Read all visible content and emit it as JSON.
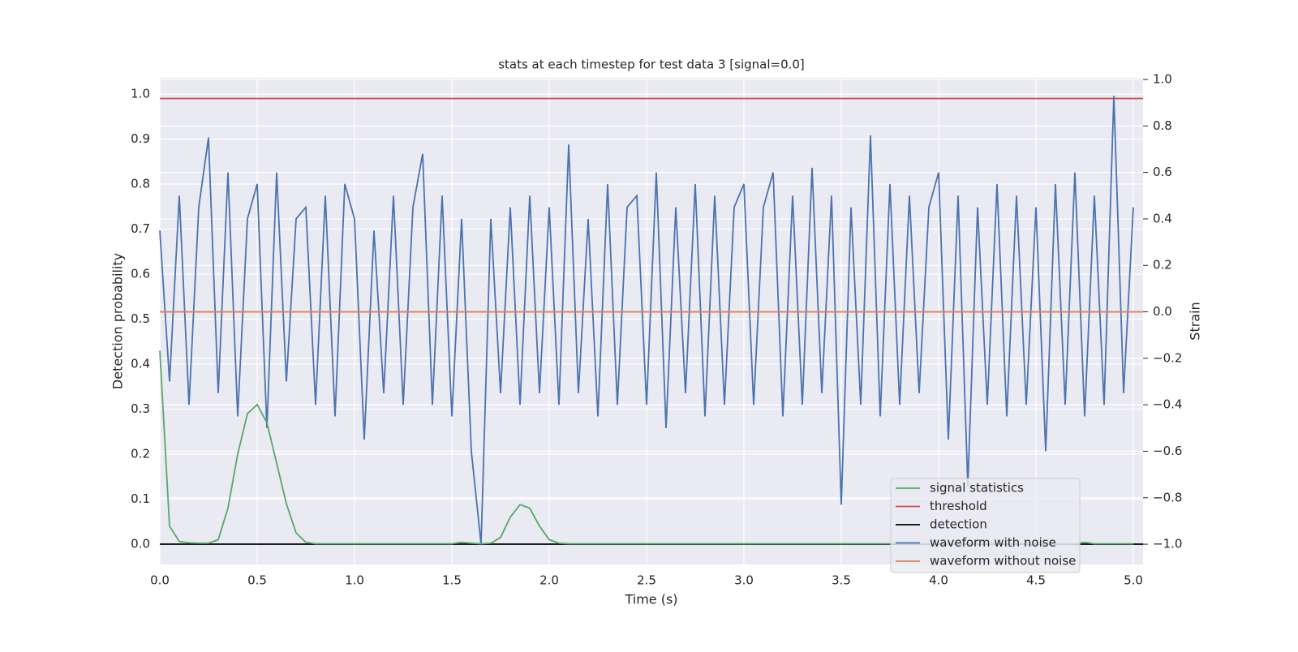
{
  "chart_data": {
    "type": "line",
    "title": "stats at each timestep for test data 3 [signal=0.0]",
    "x_label": "Time (s)",
    "y_label": "Detection probability",
    "y2_label": "Strain",
    "x": [
      0,
      0.05,
      0.1,
      0.15,
      0.2,
      0.25,
      0.3,
      0.35,
      0.4,
      0.45,
      0.5,
      0.55,
      0.6,
      0.65,
      0.7,
      0.75,
      0.8,
      0.85,
      0.9,
      0.95,
      1,
      1.05,
      1.1,
      1.15,
      1.2,
      1.25,
      1.3,
      1.35,
      1.4,
      1.45,
      1.5,
      1.55,
      1.6,
      1.65,
      1.7,
      1.75,
      1.8,
      1.85,
      1.9,
      1.95,
      2,
      2.05,
      2.1,
      2.15,
      2.2,
      2.25,
      2.3,
      2.35,
      2.4,
      2.45,
      2.5,
      2.55,
      2.6,
      2.65,
      2.7,
      2.75,
      2.8,
      2.85,
      2.9,
      2.95,
      3,
      3.05,
      3.1,
      3.15,
      3.2,
      3.25,
      3.3,
      3.35,
      3.4,
      3.45,
      3.5,
      3.55,
      3.6,
      3.65,
      3.7,
      3.75,
      3.8,
      3.85,
      3.9,
      3.95,
      4,
      4.05,
      4.1,
      4.15,
      4.2,
      4.25,
      4.3,
      4.35,
      4.4,
      4.45,
      4.5,
      4.55,
      4.6,
      4.65,
      4.7,
      4.75,
      4.8,
      4.85,
      4.9,
      4.95,
      5
    ],
    "series": [
      {
        "name": "signal statistics",
        "color": "#55a868",
        "values": [
          0.43,
          0.04,
          0.006,
          0.003,
          0.002,
          0.002,
          0.01,
          0.08,
          0.2,
          0.29,
          0.31,
          0.27,
          0.18,
          0.09,
          0.025,
          0.004,
          0.001,
          0.001,
          0.001,
          0.001,
          0.001,
          0.001,
          0.001,
          0.001,
          0.001,
          0.001,
          0.001,
          0.001,
          0.001,
          0.001,
          0.001,
          0.004,
          0.002,
          0.001,
          0.002,
          0.015,
          0.06,
          0.088,
          0.08,
          0.04,
          0.01,
          0.002,
          0.001,
          0.001,
          0.001,
          0.001,
          0.001,
          0.001,
          0.001,
          0.001,
          0.001,
          0.001,
          0.001,
          0.001,
          0.001,
          0.001,
          0.001,
          0.001,
          0.001,
          0.001,
          0.001,
          0.001,
          0.001,
          0.001,
          0.001,
          0.001,
          0.001,
          0.001,
          0.001,
          0.001,
          0.001,
          0.001,
          0.001,
          0.001,
          0.001,
          0.001,
          0.001,
          0.001,
          0.001,
          0.001,
          0.001,
          0.001,
          0.001,
          0.001,
          0.001,
          0.001,
          0.001,
          0.001,
          0.001,
          0.001,
          0.001,
          0.001,
          0.001,
          0.001,
          0.001,
          0.004,
          0.001,
          0.001,
          0.001,
          0.001,
          0.001
        ]
      },
      {
        "name": "threshold",
        "color": "#c44e52",
        "value": 0.99
      },
      {
        "name": "detection",
        "color": "#000000",
        "value": 0
      },
      {
        "name": "waveform with noise",
        "color": "#4c72b0",
        "axis": "y2",
        "values": [
          0.35,
          -0.3,
          0.5,
          -0.4,
          0.45,
          0.75,
          -0.35,
          0.6,
          -0.45,
          0.4,
          0.55,
          -0.5,
          0.6,
          -0.3,
          0.4,
          0.45,
          -0.4,
          0.5,
          -0.45,
          0.55,
          0.4,
          -0.55,
          0.35,
          -0.35,
          0.5,
          -0.4,
          0.45,
          0.68,
          -0.4,
          0.5,
          -0.45,
          0.4,
          -0.6,
          -1.0,
          0.4,
          -0.35,
          0.45,
          -0.4,
          0.5,
          -0.35,
          0.45,
          -0.4,
          0.72,
          -0.35,
          0.4,
          -0.45,
          0.55,
          -0.4,
          0.45,
          0.5,
          -0.4,
          0.6,
          -0.5,
          0.45,
          -0.35,
          0.55,
          -0.45,
          0.5,
          -0.4,
          0.45,
          0.55,
          -0.4,
          0.45,
          0.6,
          -0.45,
          0.5,
          -0.4,
          0.62,
          -0.35,
          0.5,
          -0.83,
          0.45,
          -0.4,
          0.76,
          -0.45,
          0.55,
          -0.4,
          0.5,
          -0.35,
          0.45,
          0.6,
          -0.55,
          0.5,
          -0.75,
          0.45,
          -0.4,
          0.55,
          -0.45,
          0.5,
          -0.4,
          0.45,
          -0.6,
          0.55,
          -0.4,
          0.6,
          -0.45,
          0.5,
          -0.4,
          0.93,
          -0.35,
          0.45
        ]
      },
      {
        "name": "waveform without noise",
        "color": "#dd8452",
        "axis": "y2",
        "value": 0
      }
    ],
    "xlim": [
      0,
      5.05
    ],
    "ylim": [
      -0.045,
      1.036
    ],
    "y2lim": [
      -1.087,
      1.007
    ],
    "xticks": [
      {
        "value": 0,
        "label": "0.0"
      },
      0.5,
      {
        "value": 1,
        "label": "1.0"
      },
      1.5,
      {
        "value": 2,
        "label": "2.0"
      },
      2.5,
      {
        "value": 3,
        "label": "3.0"
      },
      3.5,
      {
        "value": 4,
        "label": "4.0"
      },
      4.5,
      {
        "value": 5,
        "label": "5.0"
      }
    ],
    "yticks": [
      {
        "value": 0,
        "label": "0.0"
      },
      0.1,
      0.2,
      0.3,
      0.4,
      0.5,
      0.6,
      0.7,
      0.8,
      0.9,
      {
        "value": 1,
        "label": "1.0"
      }
    ],
    "y2ticks": [
      {
        "value": -1,
        "label": "−1.0"
      },
      {
        "value": -0.8,
        "label": "−0.8"
      },
      {
        "value": -0.6,
        "label": "−0.6"
      },
      {
        "value": -0.4,
        "label": "−0.4"
      },
      {
        "value": -0.2,
        "label": "−0.2"
      },
      {
        "value": 0,
        "label": "0.0"
      },
      0.2,
      0.4,
      0.6,
      0.8,
      {
        "value": 1,
        "label": "1.0"
      }
    ],
    "grid": true,
    "legend": "lower right"
  }
}
